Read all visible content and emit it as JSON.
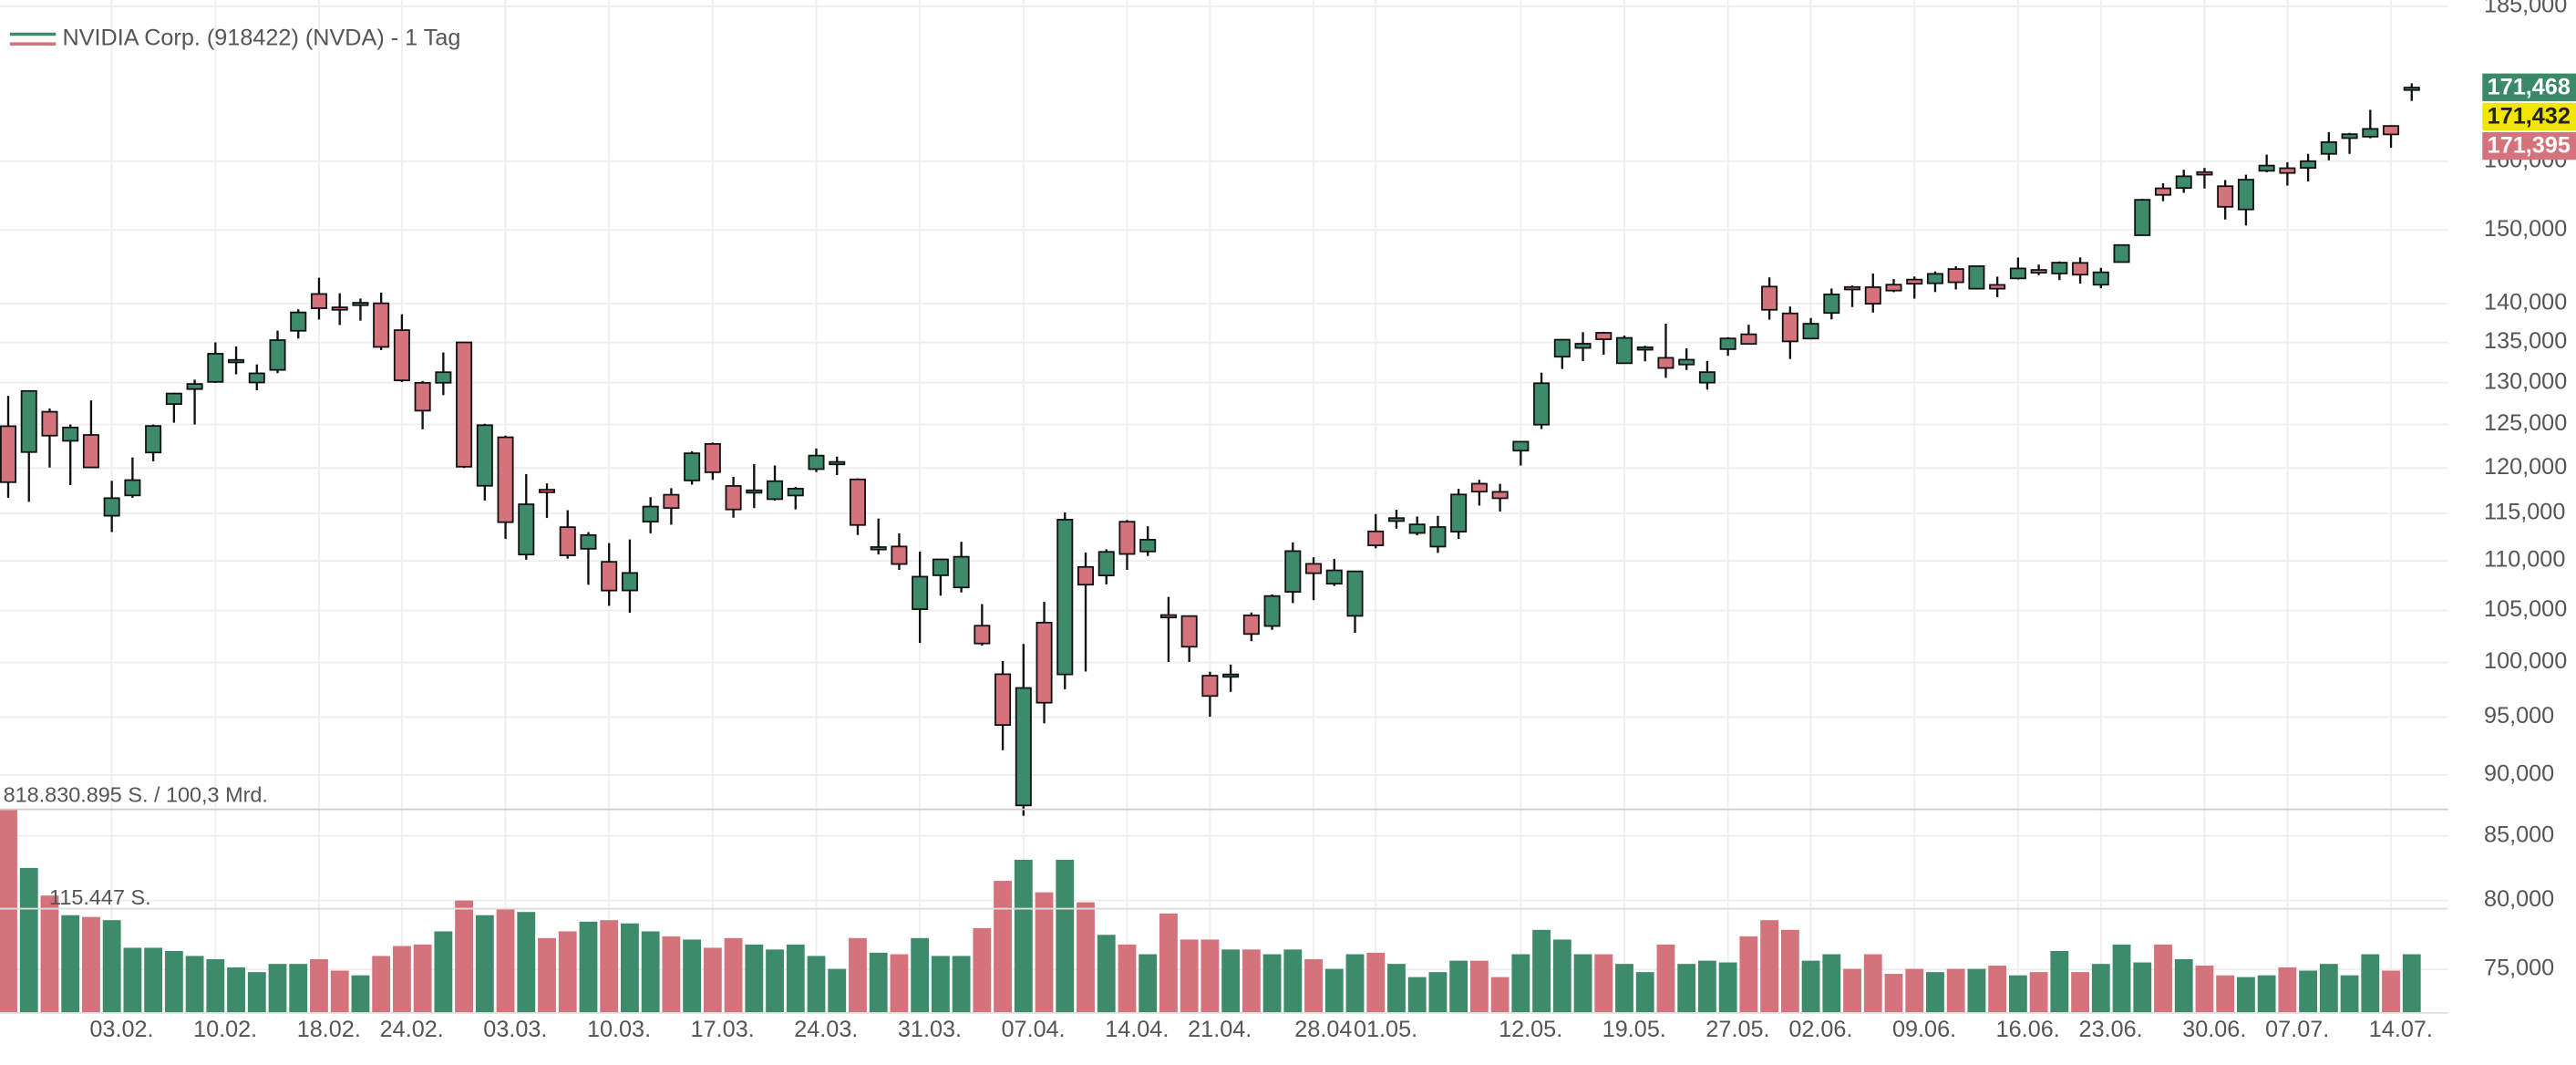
{
  "chart_data": {
    "type": "candlestick",
    "title": "NVIDIA Corp. (918422) (NVDA) - 1 Tag",
    "volume_label": "818.830.895 S. / 100,3 Mrd.",
    "volume_average_label": "115.447 S.",
    "log_scale": true,
    "grid": true,
    "up_color": "#3d8b6b",
    "down_color": "#d4737c",
    "ylim": [
      72,
      186.1
    ],
    "yticks": [
      {
        "value": 185,
        "label": "185,000"
      },
      {
        "value": 160,
        "label": "160,000"
      },
      {
        "value": 150,
        "label": "150,000"
      },
      {
        "value": 140,
        "label": "140,000"
      },
      {
        "value": 135,
        "label": "135,000"
      },
      {
        "value": 130,
        "label": "130,000"
      },
      {
        "value": 125,
        "label": "125,000"
      },
      {
        "value": 120,
        "label": "120,000"
      },
      {
        "value": 115,
        "label": "115,000"
      },
      {
        "value": 110,
        "label": "110,000"
      },
      {
        "value": 105,
        "label": "105,000"
      },
      {
        "value": 100,
        "label": "100,000"
      },
      {
        "value": 95,
        "label": "95,000"
      },
      {
        "value": 90,
        "label": "90,000"
      },
      {
        "value": 85,
        "label": "85,000"
      },
      {
        "value": 80,
        "label": "80,000"
      },
      {
        "value": 75,
        "label": "75,000"
      }
    ],
    "volume_ylim": [
      0,
      818.83
    ],
    "price_tags": [
      {
        "value": 171.468,
        "label": "171,468",
        "color": "#3a8a6a"
      },
      {
        "value": 171.432,
        "label": "171,432",
        "color": "#f2e600"
      },
      {
        "value": 171.395,
        "label": "171,395",
        "color": "#d4737c"
      }
    ],
    "categories": [
      null,
      null,
      null,
      null,
      null,
      "03.02.",
      null,
      null,
      null,
      null,
      "10.02.",
      null,
      null,
      null,
      null,
      "18.02.",
      null,
      null,
      null,
      "24.02.",
      null,
      null,
      null,
      null,
      "03.03.",
      null,
      null,
      null,
      null,
      "10.03.",
      null,
      null,
      null,
      null,
      "17.03.",
      null,
      null,
      null,
      null,
      "24.03.",
      null,
      null,
      null,
      null,
      "31.03.",
      null,
      null,
      null,
      null,
      "07.04.",
      null,
      null,
      null,
      null,
      "14.04.",
      null,
      null,
      null,
      "21.04.",
      null,
      null,
      null,
      null,
      "28.04",
      null,
      null,
      "01.05.",
      null,
      null,
      null,
      null,
      null,
      null,
      "12.05.",
      null,
      null,
      null,
      null,
      "19.05.",
      null,
      null,
      null,
      null,
      "27.05.",
      null,
      null,
      null,
      "02.06.",
      null,
      null,
      null,
      null,
      "09.06.",
      null,
      null,
      null,
      null,
      "16.06.",
      null,
      null,
      null,
      "23.06.",
      null,
      null,
      null,
      null,
      "30.06.",
      null,
      null,
      null,
      "07.07.",
      null,
      null,
      null,
      null,
      "14.07.",
      null
    ],
    "open": [
      124.8,
      121.81,
      126.5,
      123.1,
      123.78,
      114.75,
      116.96,
      121.76,
      127.42,
      129.22,
      130.09,
      132.58,
      130.02,
      131.56,
      136.48,
      141.27,
      139.51,
      140.03,
      140.04,
      136.56,
      129.98,
      129.99,
      135,
      118.02,
      123.51,
      110.65,
      117.58,
      113.53,
      111.25,
      109.9,
      106.99,
      114.12,
      117.03,
      118.61,
      122.74,
      118,
      117.27,
      116.55,
      116.95,
      119.88,
      120.55,
      118.73,
      111.35,
      111.49,
      105.13,
      108.52,
      107.29,
      103.51,
      98.91,
      87.46,
      103.81,
      98.89,
      109.37,
      108.5,
      114.11,
      110.97,
      104.55,
      104.45,
      98.77,
      98.78,
      104.52,
      103.48,
      106.85,
      109.69,
      107.67,
      104.47,
      113.08,
      114.18,
      112.91,
      111.48,
      113.05,
      118.25,
      117.35,
      121.97,
      124.98,
      133.2,
      134.3,
      136.22,
      132.39,
      134.29,
      133.06,
      132.23,
      130,
      134.15,
      136.03,
      142.25,
      138.72,
      135.49,
      138.78,
      142.19,
      142.17,
      142.51,
      143.19,
      142.69,
      144.61,
      141.97,
      142.48,
      143.35,
      144.49,
      144.01,
      145.45,
      142.5,
      145.56,
      149.27,
      155.98,
      156.04,
      158.37,
      156.29,
      152.92,
      158.56,
      158.95,
      159,
      161.1,
      163.5,
      163.72,
      165.37,
      171.4
    ],
    "high": [
      128.4,
      129,
      126.89,
      125,
      127.85,
      118.57,
      121.2,
      125,
      128.77,
      130.37,
      135,
      134.48,
      132.24,
      136.5,
      139.25,
      143.44,
      141.36,
      140.67,
      141.46,
      138.59,
      130.2,
      133.73,
      135.01,
      125.09,
      123.7,
      119.31,
      118.28,
      115.35,
      113,
      111.85,
      112.23,
      116.77,
      117.76,
      121.89,
      122.9,
      119.02,
      120.45,
      120.29,
      117.89,
      122.22,
      121.29,
      118.84,
      114.45,
      112.87,
      110.96,
      110.2,
      111.98,
      105.63,
      100.13,
      101.75,
      105.85,
      115.1,
      110.86,
      111.2,
      114.29,
      113.62,
      106.34,
      104.47,
      99.13,
      99.81,
      104.8,
      106.59,
      111.92,
      110.37,
      110.2,
      108.92,
      114.94,
      115.4,
      114.67,
      114.74,
      117.68,
      118.68,
      118.23,
      123,
      131.22,
      135.44,
      136.3,
      136.35,
      135.87,
      134.58,
      137.4,
      134.25,
      132.68,
      135.66,
      137.25,
      143.49,
      139.62,
      138.12,
      142,
      142.39,
      144,
      143.27,
      143.6,
      144.29,
      144.99,
      145,
      143.58,
      146.18,
      145.22,
      145.65,
      146.2,
      144.78,
      147.96,
      154.45,
      156.72,
      158.71,
      158.99,
      157.2,
      157.98,
      160.98,
      159.84,
      161.1,
      164.42,
      164.3,
      167.89,
      165.49,
      172.1
    ],
    "low": [
      116.7,
      116.25,
      120.05,
      118.1,
      120.3,
      113.01,
      116.7,
      120.76,
      125.21,
      125,
      129.96,
      131.02,
      129.08,
      131.17,
      135.5,
      137.93,
      137.22,
      137.78,
      134.03,
      130.08,
      124.44,
      128.49,
      120.01,
      116.4,
      112.28,
      110.11,
      114.51,
      110.22,
      107.56,
      105.46,
      104.77,
      112.88,
      113.79,
      118.15,
      118.67,
      114.54,
      115.58,
      116.38,
      115.43,
      119.54,
      119.21,
      112.7,
      110.66,
      109.07,
      101.85,
      106.47,
      106.79,
      101.6,
      92.11,
      86.62,
      94.46,
      97.53,
      99.15,
      107.6,
      109.07,
      110.5,
      100.05,
      100.05,
      95.04,
      97.28,
      102.02,
      103.11,
      105.73,
      106.02,
      107.44,
      102.82,
      111.3,
      113.37,
      112.66,
      110.82,
      112.28,
      115.85,
      115.21,
      120.28,
      124.47,
      131.68,
      132.66,
      133.46,
      132.39,
      132.62,
      130.59,
      131.55,
      129.16,
      133.31,
      134.79,
      137.91,
      132.92,
      135.4,
      137.95,
      139.55,
      138.83,
      141.51,
      140.65,
      141.53,
      141.87,
      141.85,
      140.85,
      143.2,
      143.78,
      143.12,
      142.65,
      142.03,
      145.5,
      149.26,
      154.11,
      155.32,
      155.95,
      151.49,
      150.64,
      158.35,
      156.38,
      157,
      160.12,
      161.1,
      163.47,
      162.02,
      169.3
    ],
    "close": [
      118.42,
      128.99,
      123.7,
      124.65,
      120.07,
      116.66,
      118.65,
      124.83,
      128.68,
      129.84,
      133.57,
      132.8,
      131.14,
      135.29,
      138.85,
      139.4,
      139.23,
      140.11,
      134.43,
      130.28,
      126.63,
      131.28,
      120.15,
      124.92,
      114.06,
      115.99,
      117.3,
      110.57,
      112.69,
      106.98,
      108.76,
      115.74,
      115.58,
      121.67,
      119.53,
      115.43,
      117.52,
      118.53,
      117.7,
      121.41,
      120.69,
      113.76,
      111.43,
      109.67,
      108.38,
      110.15,
      110.42,
      101.8,
      94.31,
      97.64,
      96.3,
      114.33,
      107.57,
      110.93,
      110.71,
      112.2,
      104.49,
      101.49,
      96.91,
      98.89,
      102.71,
      106.43,
      111.01,
      108.73,
      109.02,
      108.92,
      111.61,
      114.5,
      113.82,
      113.54,
      117.06,
      117.37,
      116.65,
      123,
      129.93,
      135.34,
      134.83,
      135.4,
      135.57,
      134.38,
      131.8,
      132.83,
      131.29,
      135.5,
      134.81,
      139.19,
      135.13,
      137.38,
      141.22,
      141.92,
      139.99,
      141.72,
      142.63,
      143.96,
      142.83,
      145,
      141.97,
      144.69,
      144.12,
      145.48,
      143.85,
      144.17,
      147.9,
      154.31,
      155.02,
      157.75,
      157.99,
      153.3,
      157.25,
      159.34,
      158.24,
      160,
      162.88,
      164.1,
      164.92,
      164.07,
      171.43
    ],
    "volume": [
      818.83,
      583,
      472,
      393,
      386,
      373,
      262,
      262,
      249,
      229,
      216,
      183,
      164,
      197,
      197,
      216,
      170,
      151,
      229,
      269,
      275,
      328,
      452,
      393,
      419,
      406,
      301,
      328,
      367,
      373,
      360,
      328,
      308,
      295,
      262,
      301,
      275,
      255,
      275,
      229,
      177,
      301,
      242,
      236,
      301,
      229,
      229,
      341,
      531,
      616,
      485,
      616,
      445,
      314,
      275,
      236,
      400,
      295,
      295,
      255,
      255,
      236,
      255,
      216,
      177,
      236,
      242,
      197,
      144,
      164,
      210,
      210,
      144,
      236,
      334,
      295,
      236,
      236,
      197,
      164,
      275,
      197,
      210,
      203,
      308,
      373,
      334,
      210,
      236,
      177,
      236,
      157,
      177,
      164,
      177,
      177,
      190,
      151,
      164,
      249,
      164,
      197,
      275,
      203,
      275,
      216,
      190,
      151,
      144,
      151,
      183,
      170,
      197,
      151,
      236,
      170,
      236
    ]
  }
}
